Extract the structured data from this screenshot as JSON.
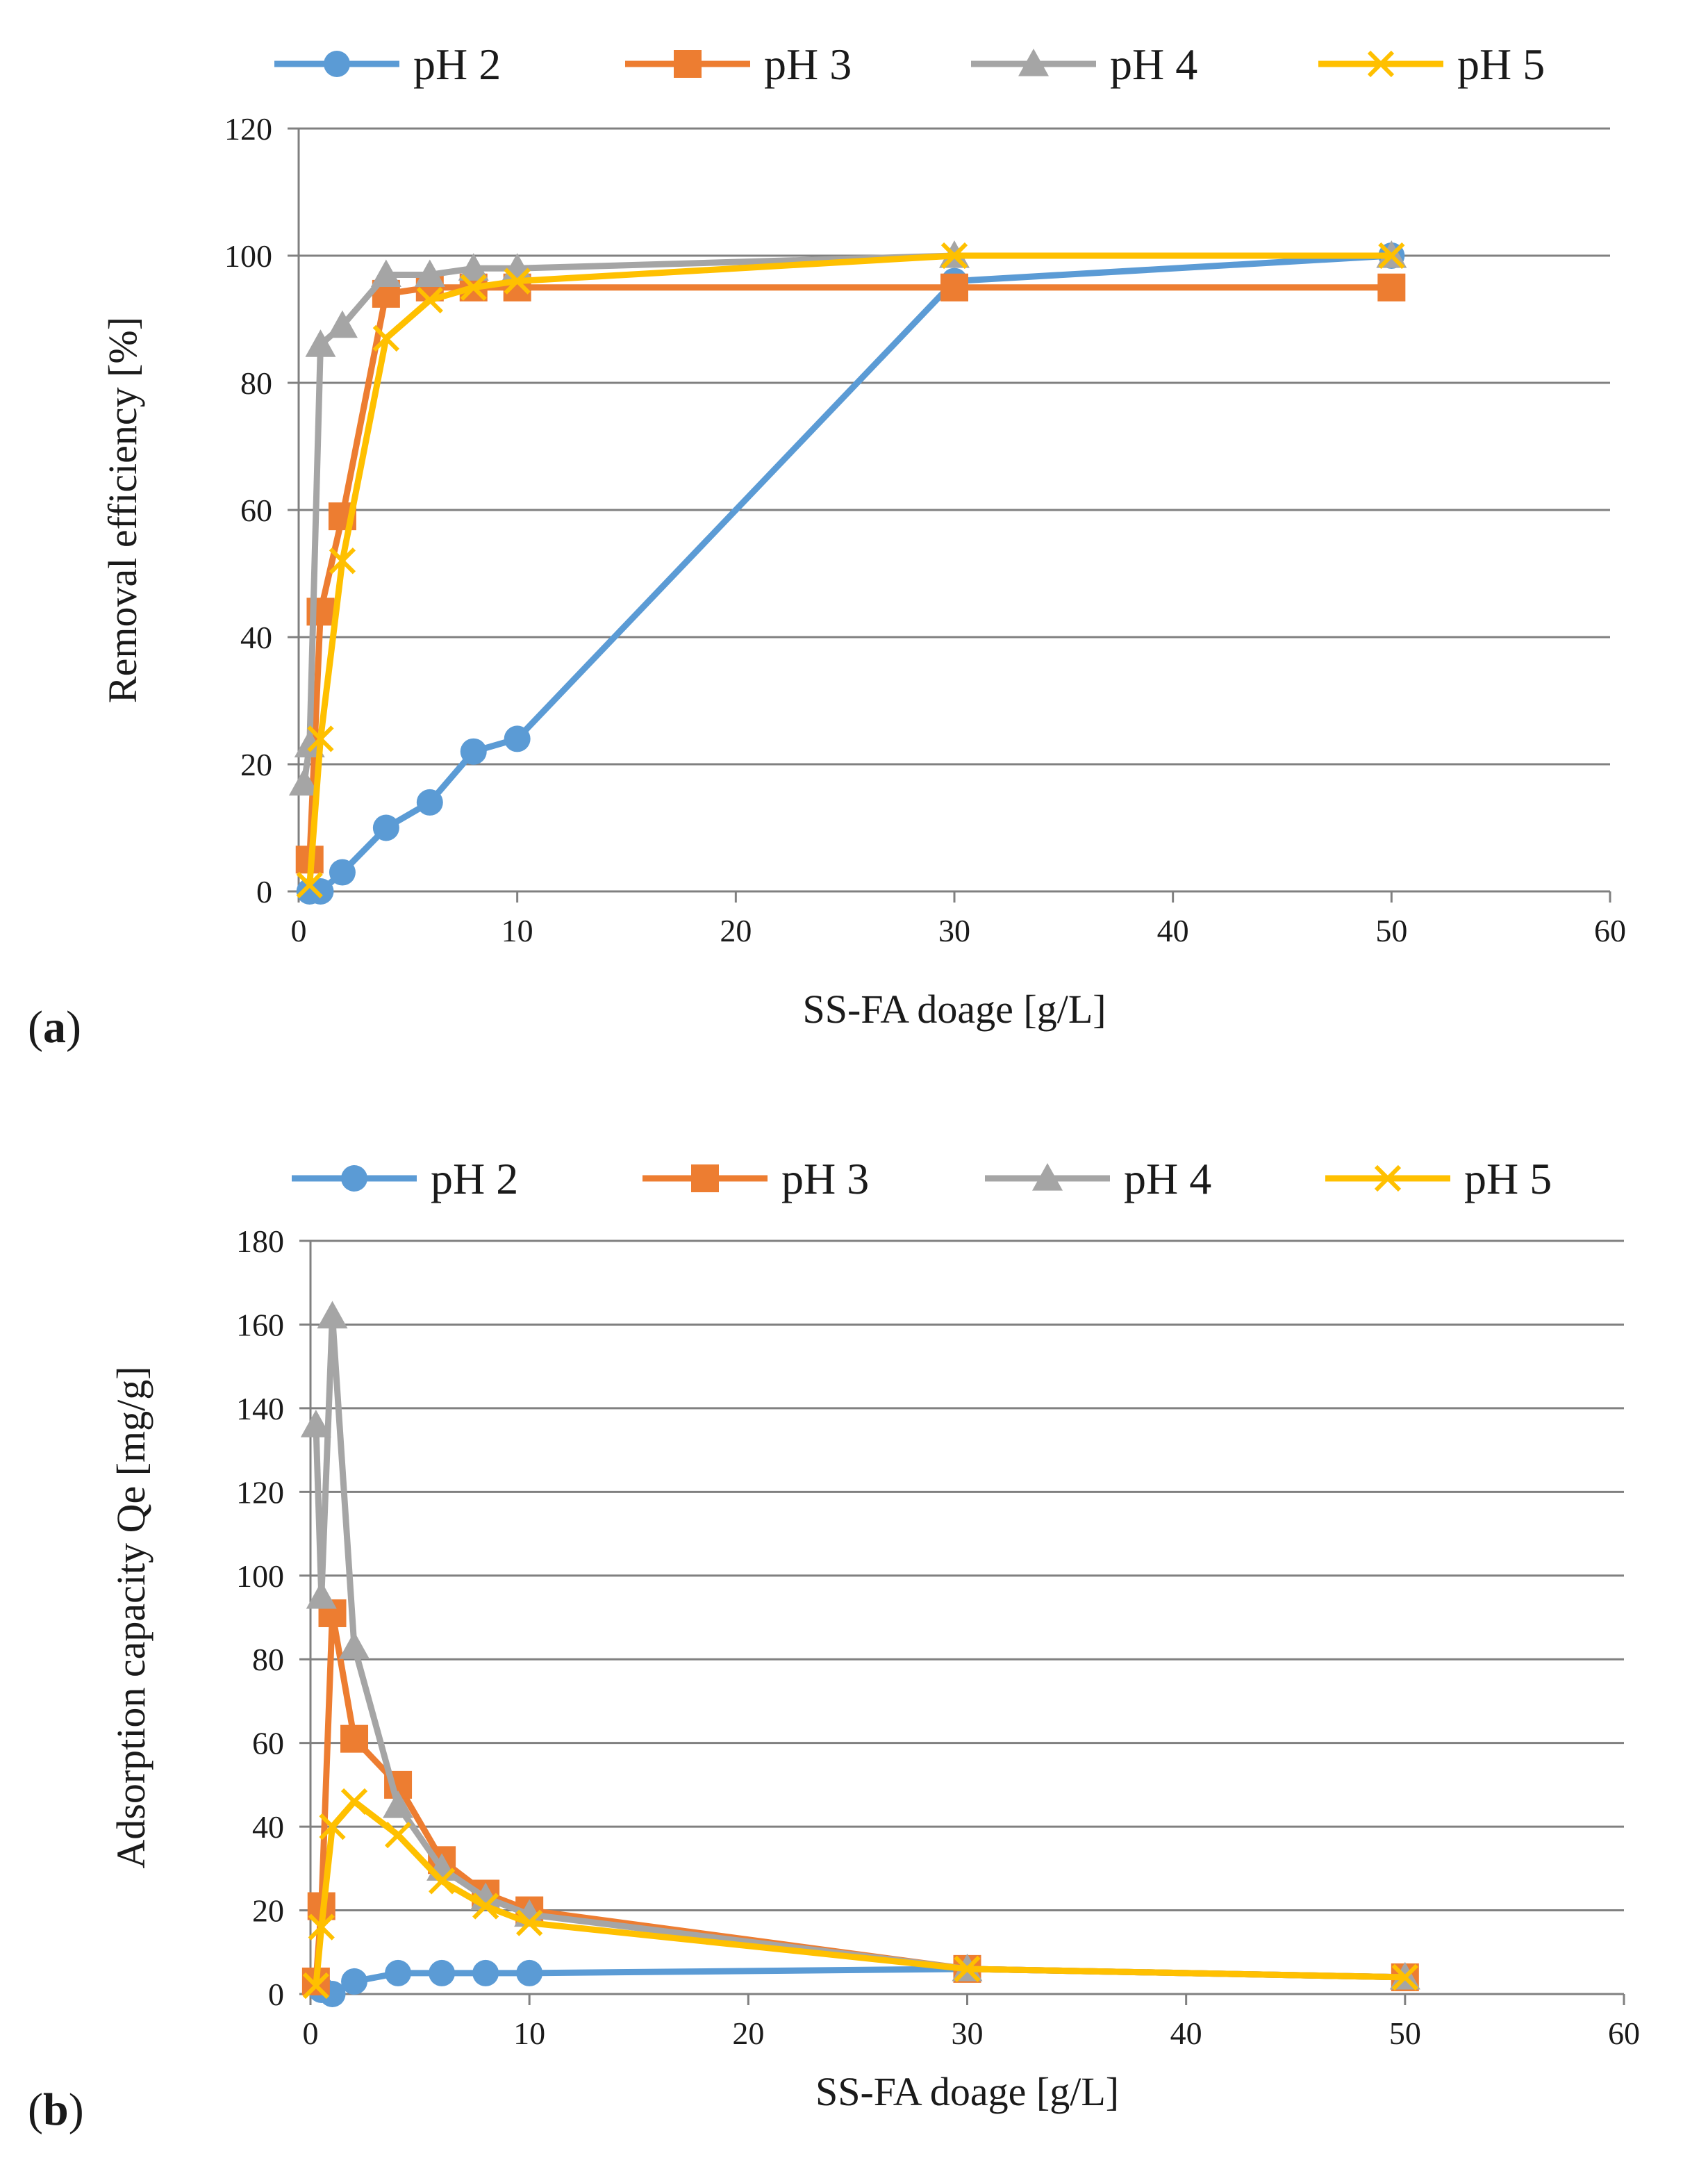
{
  "colors": {
    "pH 2": "#5b9bd5",
    "pH 3": "#ed7d31",
    "pH 4": "#a5a5a5",
    "pH 5": "#ffc000",
    "grid": "#808080",
    "axis": "#808080"
  },
  "panels": [
    {
      "label_open": "(",
      "label_letter": "a",
      "label_close": ")"
    },
    {
      "label_open": "(",
      "label_letter": "b",
      "label_close": ")"
    }
  ],
  "chart_data": [
    {
      "type": "line",
      "panel": "a",
      "xlabel": "SS-FA doage [g/L]",
      "ylabel": "Removal efficiency  [%]",
      "xlim": [
        0,
        60
      ],
      "ylim": [
        0,
        120
      ],
      "xticks": [
        0,
        10,
        20,
        30,
        40,
        50,
        60
      ],
      "yticks": [
        0,
        20,
        40,
        60,
        80,
        100,
        120
      ],
      "grid": "horizontal",
      "legend": "top",
      "series": [
        {
          "name": "pH 2",
          "marker": "circle",
          "x": [
            0.5,
            1,
            2,
            4,
            6,
            8,
            10,
            30,
            50
          ],
          "y": [
            0,
            0,
            3,
            10,
            14,
            22,
            24,
            96,
            100
          ]
        },
        {
          "name": "pH 3",
          "marker": "square",
          "x": [
            0.5,
            1,
            2,
            4,
            6,
            8,
            10,
            30,
            50
          ],
          "y": [
            5,
            44,
            59,
            94,
            95,
            95,
            95,
            95,
            95
          ]
        },
        {
          "name": "pH 4",
          "marker": "triangle",
          "x": [
            0.25,
            0.5,
            1,
            2,
            4,
            6,
            8,
            10,
            30,
            50
          ],
          "y": [
            17,
            23,
            86,
            89,
            97,
            97,
            98,
            98,
            100,
            100
          ]
        },
        {
          "name": "pH 5",
          "marker": "x",
          "x": [
            0.5,
            1,
            2,
            4,
            6,
            8,
            10,
            30,
            50
          ],
          "y": [
            1,
            24,
            52,
            87,
            93,
            95,
            96,
            100,
            100
          ]
        }
      ]
    },
    {
      "type": "line",
      "panel": "b",
      "xlabel": "SS-FA doage [g/L]",
      "ylabel": "Adsorption capacity Qe  [mg/g]",
      "xlim": [
        0,
        60
      ],
      "ylim": [
        0,
        180
      ],
      "xticks": [
        0,
        10,
        20,
        30,
        40,
        50,
        60
      ],
      "yticks": [
        0,
        20,
        40,
        60,
        80,
        100,
        120,
        140,
        160,
        180
      ],
      "grid": "horizontal",
      "legend": "top",
      "series": [
        {
          "name": "pH 2",
          "marker": "circle",
          "x": [
            0.5,
            1,
            2,
            4,
            6,
            8,
            10,
            30,
            50
          ],
          "y": [
            1,
            0,
            3,
            5,
            5,
            5,
            5,
            6,
            4
          ]
        },
        {
          "name": "pH 3",
          "marker": "square",
          "x": [
            0.25,
            0.5,
            1,
            2,
            4,
            6,
            8,
            10,
            30,
            50
          ],
          "y": [
            3,
            21,
            91,
            61,
            50,
            32,
            24,
            20,
            6,
            4
          ]
        },
        {
          "name": "pH 4",
          "marker": "triangle",
          "x": [
            0.25,
            0.5,
            1,
            2,
            4,
            6,
            8,
            10,
            30,
            50
          ],
          "y": [
            136,
            95,
            162,
            83,
            45,
            30,
            23,
            19,
            6,
            4
          ]
        },
        {
          "name": "pH 5",
          "marker": "x",
          "x": [
            0.25,
            0.5,
            1,
            2,
            4,
            6,
            8,
            10,
            30,
            50
          ],
          "y": [
            2,
            16,
            40,
            46,
            38,
            27,
            21,
            17,
            6,
            4
          ]
        }
      ]
    }
  ]
}
